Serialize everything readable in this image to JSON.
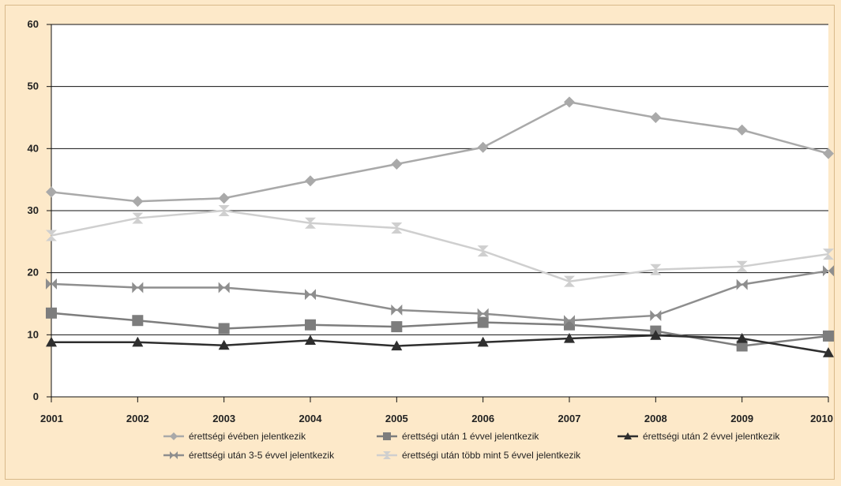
{
  "chart_data": {
    "type": "line",
    "title": "",
    "xlabel": "",
    "ylabel": "",
    "ylim": [
      0,
      60
    ],
    "yticks": [
      0,
      10,
      20,
      30,
      40,
      50,
      60
    ],
    "x": [
      "2001",
      "2002",
      "2003",
      "2004",
      "2005",
      "2006",
      "2007",
      "2008",
      "2009",
      "2010"
    ],
    "grid": "horizontal",
    "legend_position": "bottom",
    "series": [
      {
        "name": "érettségi évében jelentkezik",
        "color": "#a9a9a9",
        "marker": "diamond",
        "values": [
          33.0,
          31.5,
          32.0,
          34.8,
          37.5,
          40.2,
          47.5,
          45.0,
          43.0,
          39.2
        ]
      },
      {
        "name": "érettségi után 1 évvel jelentkezik",
        "color": "#7d7d7d",
        "marker": "square",
        "values": [
          13.5,
          12.3,
          11.0,
          11.6,
          11.3,
          12.0,
          11.6,
          10.6,
          8.2,
          9.8
        ]
      },
      {
        "name": "érettségi után 2 évvel jelentkezik",
        "color": "#2e2e2e",
        "marker": "triangle",
        "values": [
          8.8,
          8.8,
          8.3,
          9.1,
          8.2,
          8.8,
          9.4,
          9.9,
          9.4,
          7.1
        ]
      },
      {
        "name": "érettségi után 3-5 évvel jelentkezik",
        "color": "#8e8e8e",
        "marker": "bowtie",
        "values": [
          18.2,
          17.6,
          17.6,
          16.5,
          14.0,
          13.4,
          12.3,
          13.1,
          18.1,
          20.3
        ]
      },
      {
        "name": "érettségi után több mint 5 évvel jelentkezik",
        "color": "#cfcfcf",
        "marker": "hourglass",
        "values": [
          26.0,
          28.8,
          30.0,
          28.0,
          27.2,
          23.5,
          18.6,
          20.5,
          21.0,
          23.0
        ]
      }
    ]
  }
}
